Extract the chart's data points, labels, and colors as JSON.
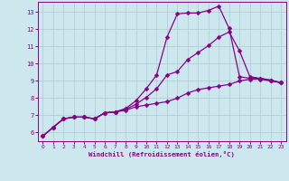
{
  "xlabel": "Windchill (Refroidissement éolien,°C)",
  "bg_color": "#cce8ee",
  "grid_color": "#aacccc",
  "line_color": "#880088",
  "axis_color": "#880088",
  "xlim": [
    -0.5,
    23.5
  ],
  "ylim": [
    5.5,
    13.6
  ],
  "xticks": [
    0,
    1,
    2,
    3,
    4,
    5,
    6,
    7,
    8,
    9,
    10,
    11,
    12,
    13,
    14,
    15,
    16,
    17,
    18,
    19,
    20,
    21,
    22,
    23
  ],
  "yticks": [
    6,
    7,
    8,
    9,
    10,
    11,
    12,
    13
  ],
  "line1_x": [
    0,
    1,
    2,
    3,
    4,
    5,
    6,
    7,
    8,
    9,
    10,
    11,
    12,
    13,
    14,
    15,
    16,
    17,
    18,
    19,
    20,
    21,
    22,
    23
  ],
  "line1_y": [
    5.8,
    6.3,
    6.8,
    6.9,
    6.9,
    6.8,
    7.15,
    7.2,
    7.3,
    7.5,
    7.6,
    7.7,
    7.8,
    8.0,
    8.3,
    8.5,
    8.6,
    8.7,
    8.8,
    9.0,
    9.1,
    9.1,
    9.0,
    8.9
  ],
  "line2_x": [
    0,
    1,
    2,
    3,
    4,
    5,
    6,
    7,
    8,
    9,
    10,
    11,
    12,
    13,
    14,
    15,
    16,
    17,
    18,
    19,
    20,
    21,
    22,
    23
  ],
  "line2_y": [
    5.8,
    6.3,
    6.8,
    6.9,
    6.9,
    6.8,
    7.15,
    7.2,
    7.35,
    7.65,
    8.05,
    8.55,
    9.35,
    9.55,
    10.25,
    10.65,
    11.05,
    11.55,
    11.85,
    10.75,
    9.25,
    9.15,
    9.05,
    8.9
  ],
  "line3_x": [
    0,
    1,
    2,
    3,
    4,
    5,
    6,
    7,
    8,
    9,
    10,
    11,
    12,
    13,
    14,
    15,
    16,
    17,
    18,
    19,
    20,
    21,
    22,
    23
  ],
  "line3_y": [
    5.8,
    6.3,
    6.8,
    6.9,
    6.9,
    6.8,
    7.15,
    7.2,
    7.4,
    7.85,
    8.55,
    9.35,
    11.55,
    12.9,
    12.95,
    12.95,
    13.1,
    13.35,
    12.05,
    9.25,
    9.15,
    9.15,
    9.05,
    8.9
  ],
  "markersize": 2.5,
  "linewidth": 0.9
}
